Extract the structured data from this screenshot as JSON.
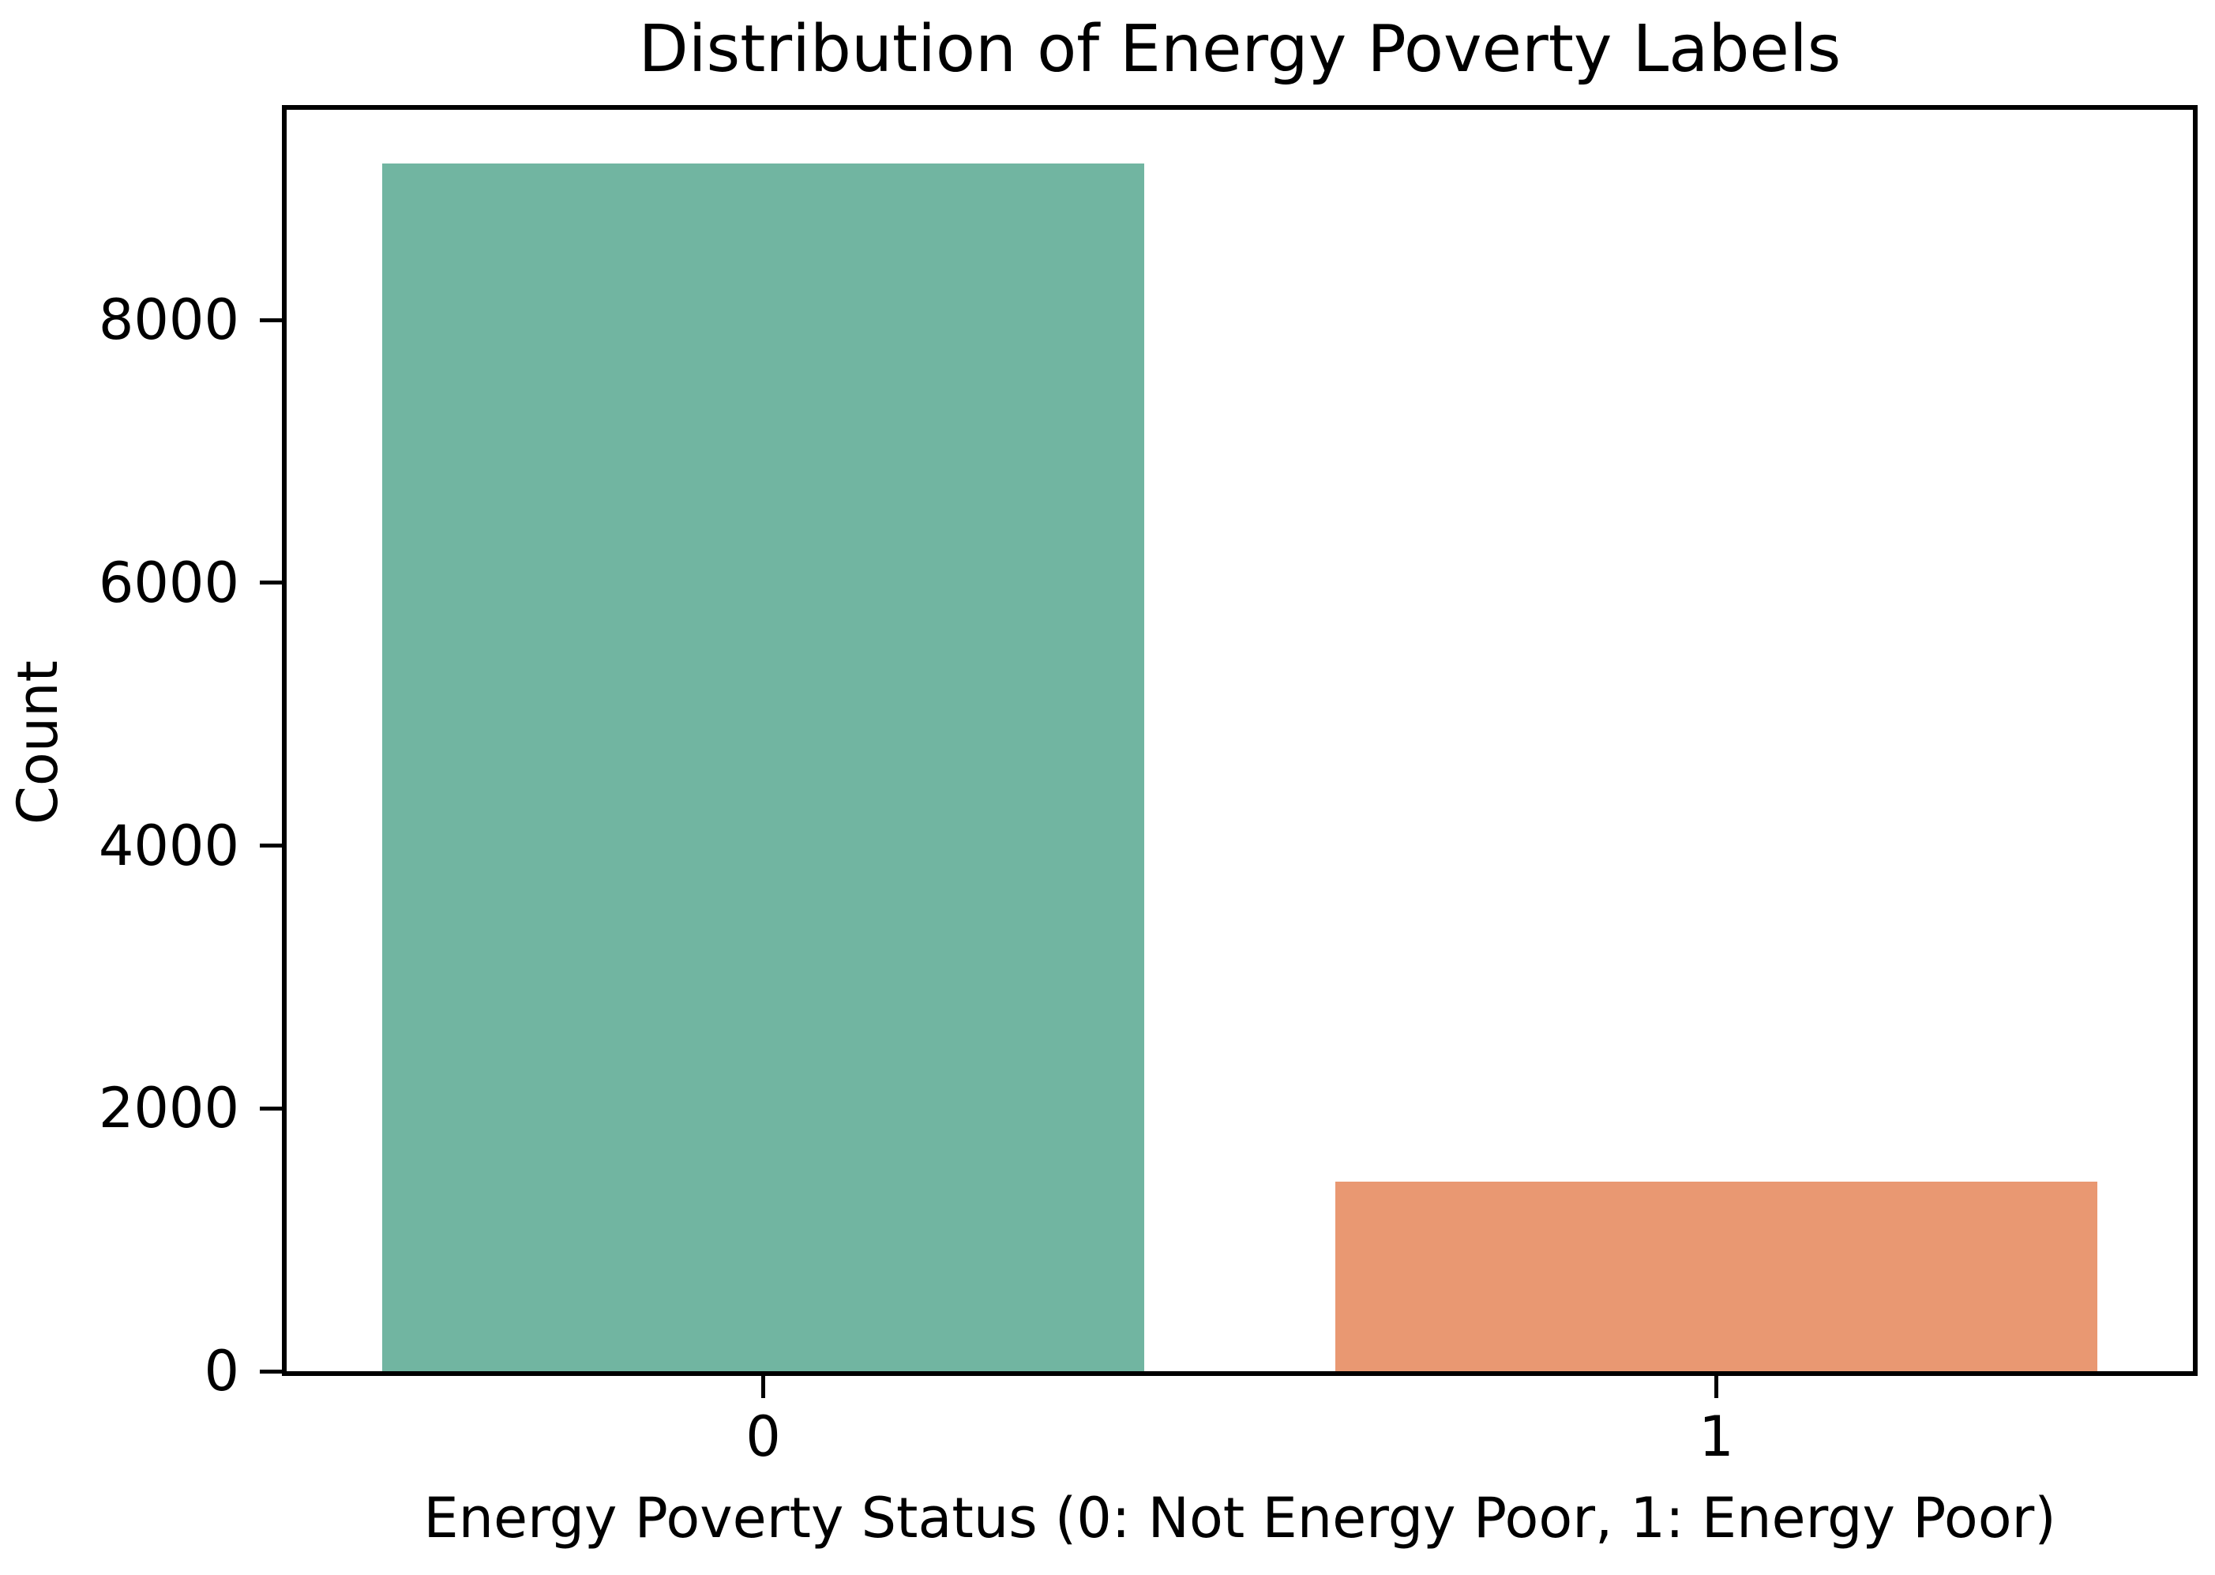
{
  "chart_data": {
    "type": "bar",
    "title": "Distribution of Energy Poverty Labels",
    "xlabel": "Energy Poverty Status (0: Not Energy Poor, 1: Energy Poor)",
    "ylabel": "Count",
    "categories": [
      "0",
      "1"
    ],
    "values": [
      9190,
      1445
    ],
    "bar_colors": [
      "#71b5a1",
      "#e99872"
    ],
    "yticks": [
      0,
      2000,
      4000,
      6000,
      8000
    ],
    "ytick_labels": [
      "0",
      "2000",
      "4000",
      "6000",
      "8000"
    ],
    "ylim": [
      0,
      9600
    ],
    "bar_width_fraction": 0.8,
    "grid": false,
    "legend": "none",
    "spine_color": "#000000",
    "background_color": "#ffffff"
  }
}
